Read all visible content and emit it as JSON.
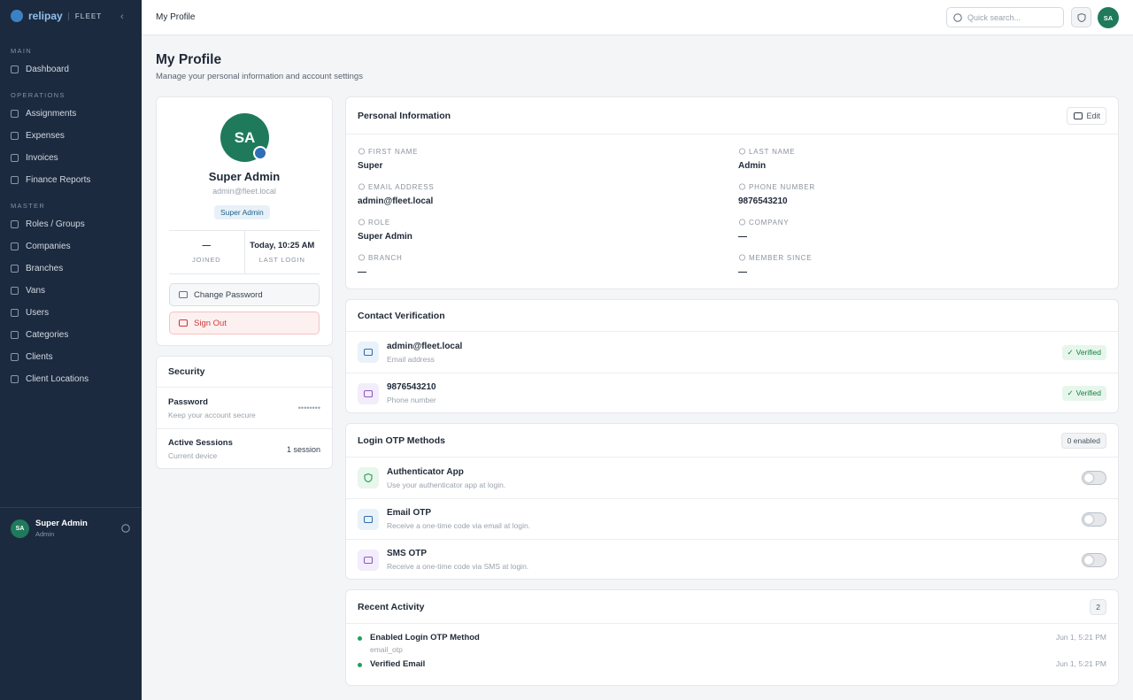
{
  "sidebar": {
    "brand": "relipay",
    "brand_tag": "FLEET",
    "sections": [
      {
        "title": "MAIN",
        "items": [
          "Dashboard"
        ]
      },
      {
        "title": "OPERATIONS",
        "items": [
          "Assignments",
          "Expenses",
          "Invoices",
          "Finance Reports"
        ]
      },
      {
        "title": "MASTER",
        "items": [
          "Roles / Groups",
          "Companies",
          "Branches",
          "Vans",
          "Users",
          "Categories",
          "Clients",
          "Client Locations"
        ]
      }
    ],
    "user": {
      "initials": "SA",
      "name": "Super Admin",
      "role": "Admin"
    }
  },
  "topbar": {
    "breadcrumb": "My Profile",
    "search_placeholder": "Quick search...",
    "initials": "SA"
  },
  "header": {
    "title": "My Profile",
    "subtitle": "Manage your personal information and account settings"
  },
  "profile_card": {
    "initials": "SA",
    "name": "Super Admin",
    "email": "admin@fleet.local",
    "badge": "Super Admin",
    "stats": [
      {
        "value": "—",
        "label": "JOINED"
      },
      {
        "value": "Today, 10:25 AM",
        "label": "LAST LOGIN"
      }
    ],
    "actions": [
      "Change Password",
      "Sign Out"
    ]
  },
  "security": {
    "title": "Security",
    "rows": [
      {
        "title": "Password",
        "subtitle": "Keep your account secure",
        "value": "••••••••"
      },
      {
        "title": "Active Sessions",
        "subtitle": "Current device",
        "value": "1 session"
      }
    ]
  },
  "personal_info": {
    "title": "Personal Information",
    "edit": "Edit",
    "fields": [
      {
        "label": "FIRST NAME",
        "value": "Super"
      },
      {
        "label": "LAST NAME",
        "value": "Admin"
      },
      {
        "label": "EMAIL ADDRESS",
        "value": "admin@fleet.local"
      },
      {
        "label": "PHONE NUMBER",
        "value": "9876543210"
      },
      {
        "label": "ROLE",
        "value": "Super Admin"
      },
      {
        "label": "COMPANY",
        "value": "—"
      },
      {
        "label": "BRANCH",
        "value": "—"
      },
      {
        "label": "MEMBER SINCE",
        "value": "—"
      }
    ]
  },
  "contact_verification": {
    "title": "Contact Verification",
    "rows": [
      {
        "value": "admin@fleet.local",
        "label": "Email address",
        "status": "Verified"
      },
      {
        "value": "9876543210",
        "label": "Phone number",
        "status": "Verified"
      }
    ]
  },
  "otp_methods": {
    "title": "Login OTP Methods",
    "badge": "0 enabled",
    "rows": [
      {
        "title": "Authenticator App",
        "subtitle": "Use your authenticator app at login."
      },
      {
        "title": "Email OTP",
        "subtitle": "Receive a one-time code via email at login."
      },
      {
        "title": "SMS OTP",
        "subtitle": "Receive a one-time code via SMS at login."
      }
    ]
  },
  "recent_activity": {
    "title": "Recent Activity",
    "count": "2",
    "items": [
      {
        "title": "Enabled Login OTP Method",
        "detail": "email_otp",
        "time": "Jun 1, 5:21 PM"
      },
      {
        "title": "Verified Email",
        "time": "Jun 1, 5:21 PM"
      }
    ]
  }
}
